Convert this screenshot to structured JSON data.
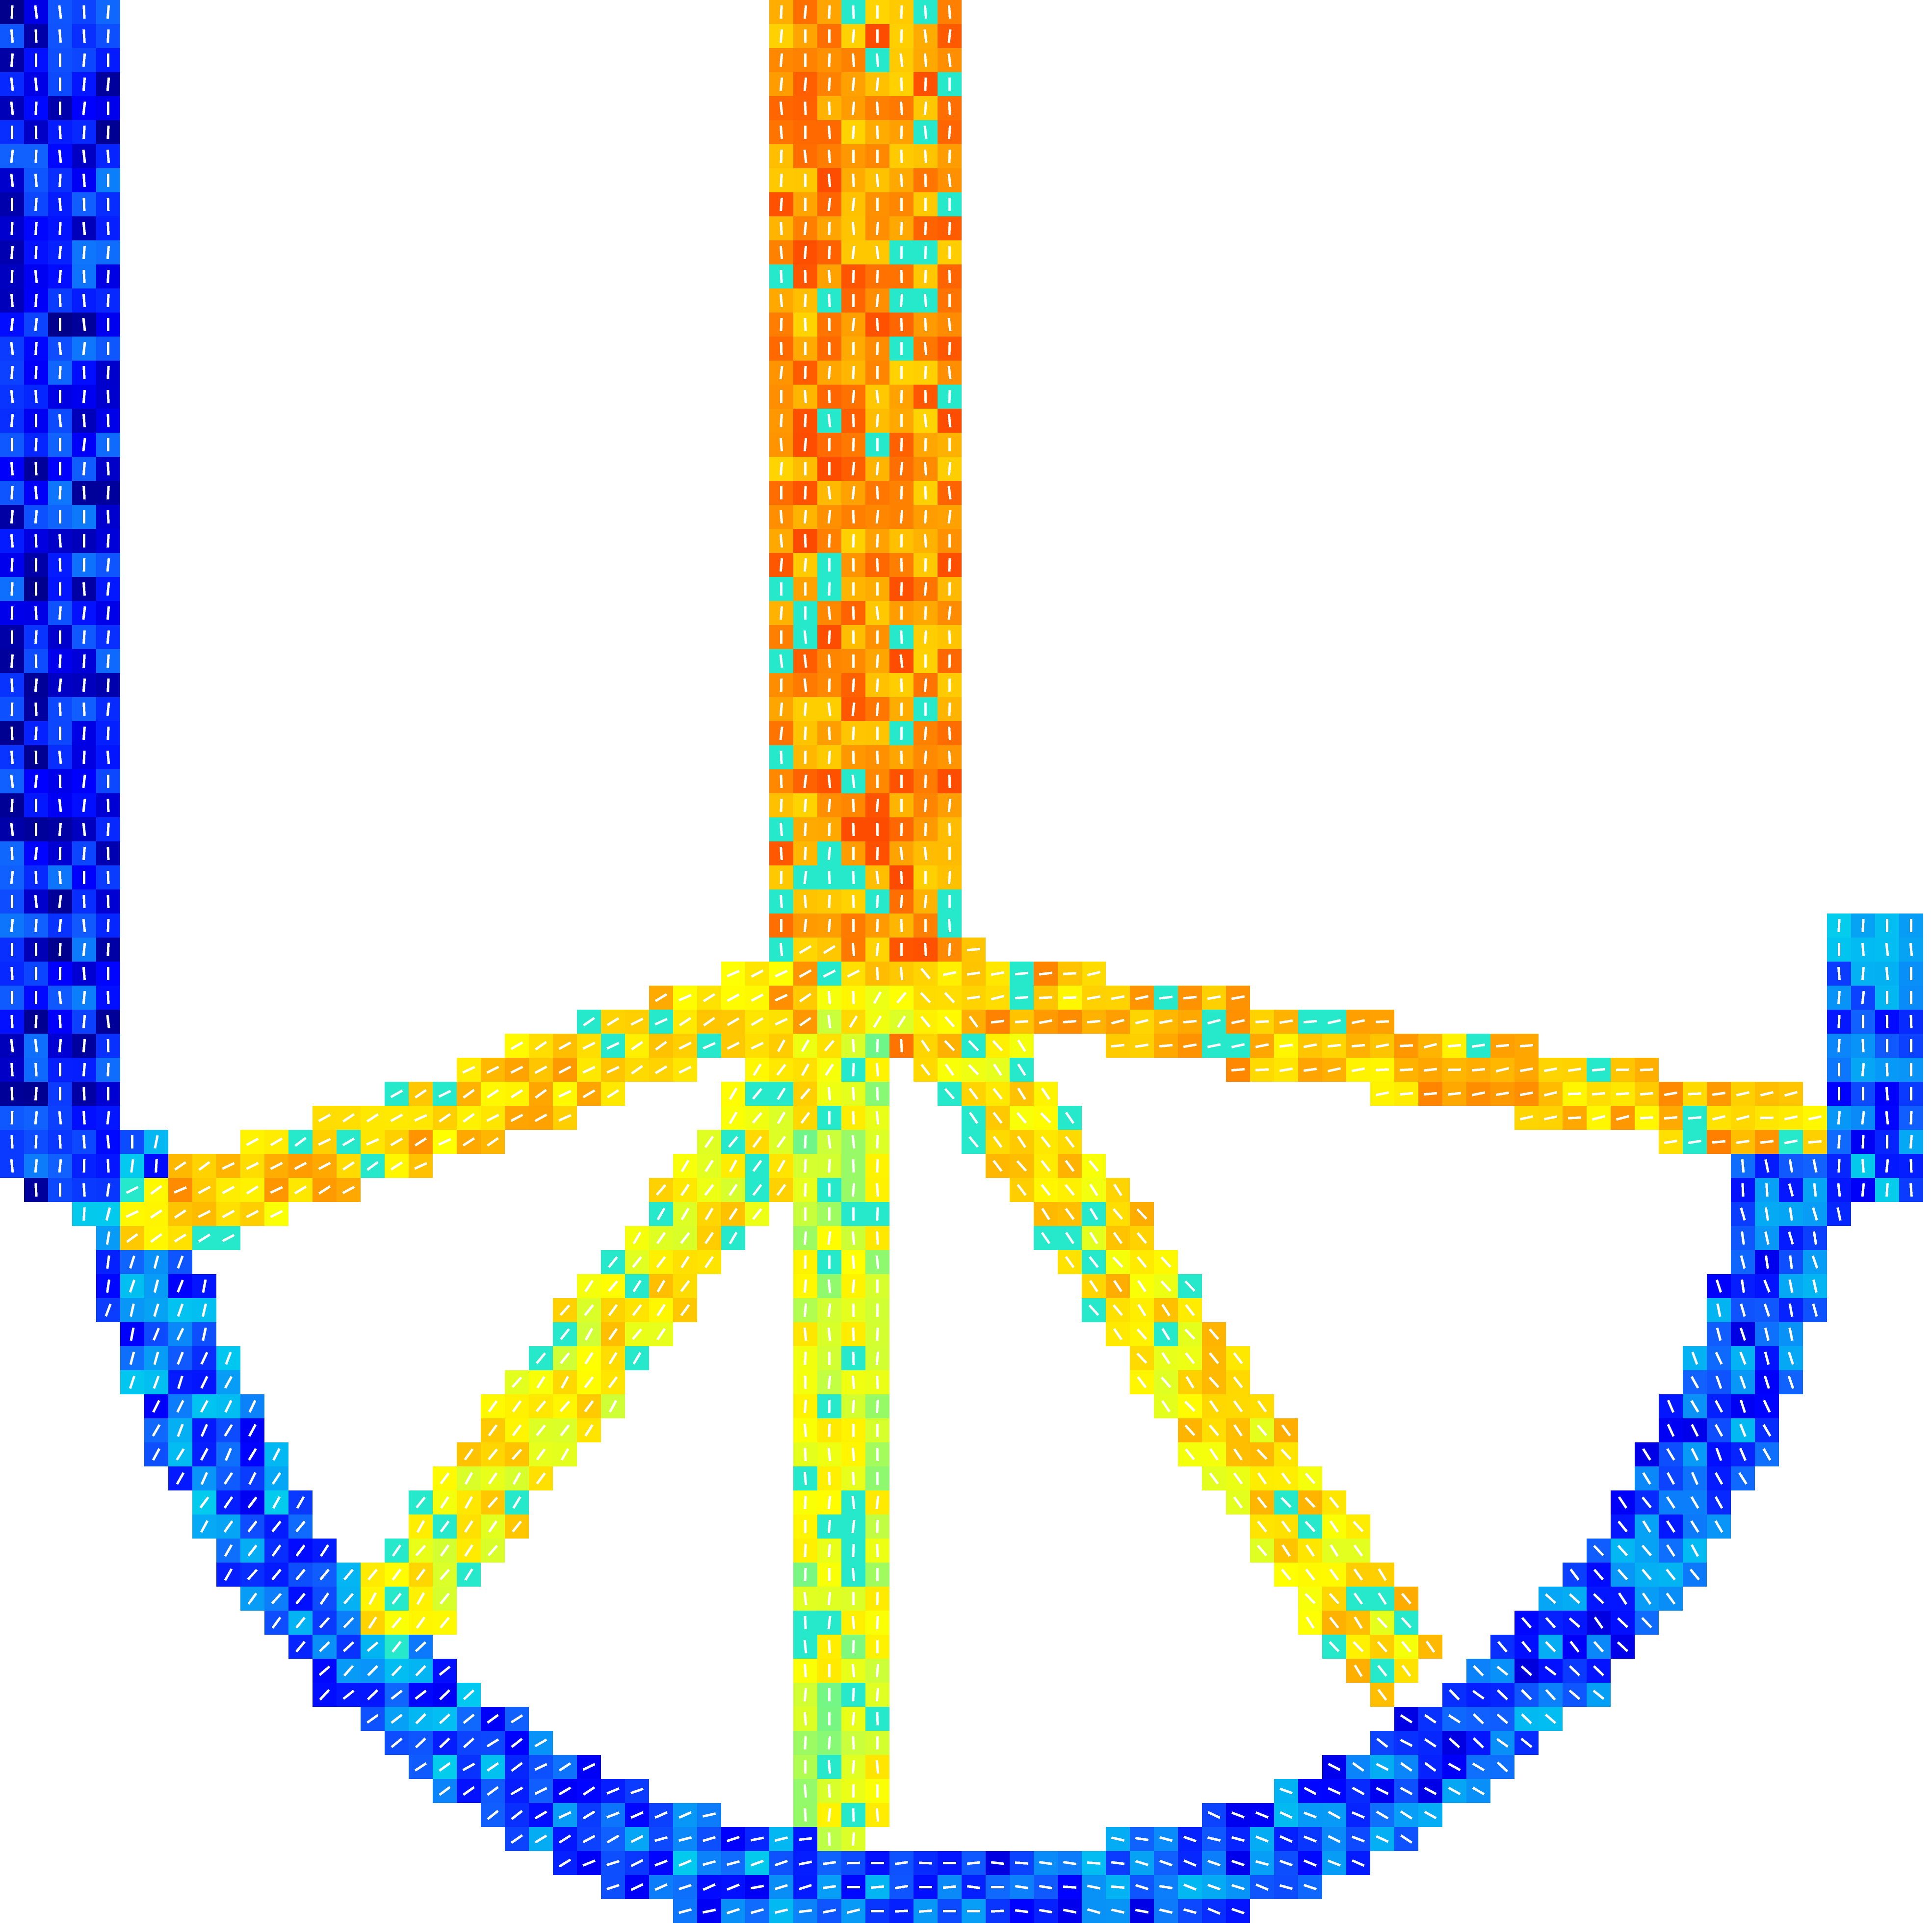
{
  "figure": {
    "type": "topology-optimization-field",
    "background": "#ffffff",
    "colormap": [
      "#00007f",
      "#0000ff",
      "#1060ff",
      "#00c8f0",
      "#30f0c0",
      "#c8ff3c",
      "#ffff00",
      "#ffd000",
      "#ff9000",
      "#ff5000",
      "#e01000"
    ],
    "glyph_color": "#ffffff",
    "glyph_style": "short-dash-orientation",
    "members": [
      {
        "name": "left-column",
        "level": 0.12,
        "angle": 90
      },
      {
        "name": "center-column",
        "level": 0.8,
        "angle": 90
      },
      {
        "name": "left-arm",
        "level": 0.7,
        "angle": 30
      },
      {
        "name": "right-arm",
        "level": 0.72,
        "angle": 8
      },
      {
        "name": "left-diagonal",
        "level": 0.62,
        "angle": 55
      },
      {
        "name": "center-vertical-strut",
        "level": 0.55,
        "angle": 90
      },
      {
        "name": "right-diagonal",
        "level": 0.65,
        "angle": 128
      },
      {
        "name": "bottom-arc-left",
        "level": 0.2,
        "angle": 40
      },
      {
        "name": "bottom-arc-right",
        "level": 0.18,
        "angle": 145
      },
      {
        "name": "right-stub",
        "level": 0.2,
        "angle": 90
      }
    ]
  }
}
